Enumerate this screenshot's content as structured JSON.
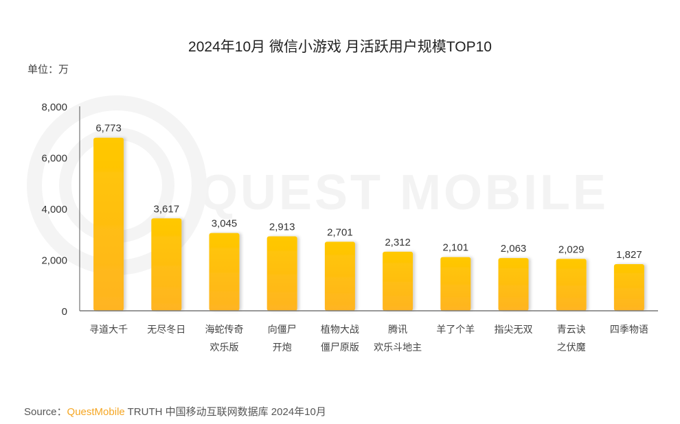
{
  "chart_data": {
    "type": "bar",
    "title": "2024年10月 微信小游戏 月活跃用户规模TOP10",
    "unit_label": "单位：万",
    "categories": [
      [
        "寻道大千"
      ],
      [
        "无尽冬日"
      ],
      [
        "海蛇传奇",
        "欢乐版"
      ],
      [
        "向僵尸",
        "开炮"
      ],
      [
        "植物大战",
        "僵尸原版"
      ],
      [
        "腾讯",
        "欢乐斗地主"
      ],
      [
        "羊了个羊"
      ],
      [
        "指尖无双"
      ],
      [
        "青云诀",
        "之伏魔"
      ],
      [
        "四季物语"
      ]
    ],
    "values": [
      6773,
      3617,
      3045,
      2913,
      2701,
      2312,
      2101,
      2063,
      2029,
      1827
    ],
    "value_labels": [
      "6,773",
      "3,617",
      "3,045",
      "2,913",
      "2,701",
      "2,312",
      "2,101",
      "2,063",
      "2,029",
      "1,827"
    ],
    "ylim": [
      0,
      8000
    ],
    "yticks": [
      0,
      2000,
      4000,
      6000,
      8000
    ],
    "ytick_labels": [
      "0",
      "2,000",
      "4,000",
      "6,000",
      "8,000"
    ],
    "grid": false,
    "colors": {
      "bar_top": "#FFC800",
      "bar_bottom": "#FFB422"
    }
  },
  "watermark": "QUEST MOBILE",
  "source": {
    "prefix": "Source：",
    "brand": "QuestMobile",
    "rest": " TRUTH 中国移动互联网数据库 2024年10月"
  }
}
